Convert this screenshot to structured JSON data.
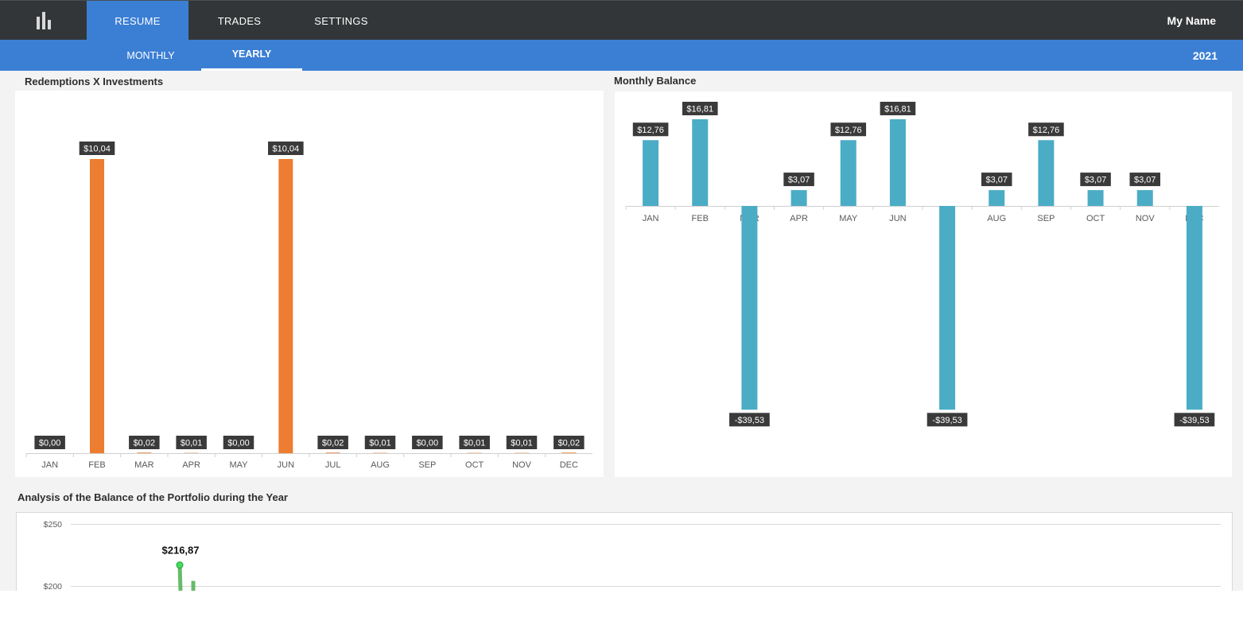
{
  "nav": {
    "logo_icon": "bar-chart-icon",
    "tabs": [
      {
        "label": "RESUME",
        "active": true
      },
      {
        "label": "TRADES",
        "active": false
      },
      {
        "label": "SETTINGS",
        "active": false
      }
    ],
    "user": "My Name"
  },
  "subnav": {
    "tabs": [
      {
        "label": "MONTHLY",
        "active": false
      },
      {
        "label": "YEARLY",
        "active": true
      }
    ],
    "year": "2021"
  },
  "colors": {
    "nav_bg": "#333638",
    "accent": "#3b7fd4",
    "redemption_bar": "#ed7d31",
    "balance_bar": "#4bacc6",
    "portfolio_line": "#4caf50"
  },
  "panels": {
    "redemptions_title": "Redemptions X Investments",
    "balance_title": "Monthly Balance",
    "portfolio_title": "Analysis of the Balance of the Portfolio during the Year"
  },
  "chart_data": [
    {
      "id": "redemptions",
      "type": "bar",
      "title": "Redemptions X Investments",
      "categories": [
        "JAN",
        "FEB",
        "MAR",
        "APR",
        "MAY",
        "JUN",
        "JUL",
        "AUG",
        "SEP",
        "OCT",
        "NOV",
        "DEC"
      ],
      "values": [
        0.0,
        10.04,
        0.02,
        0.01,
        0.0,
        10.04,
        0.02,
        0.01,
        0.0,
        0.01,
        0.01,
        0.02
      ],
      "data_labels": [
        "$0,00",
        "$10,04",
        "$0,02",
        "$0,01",
        "$0,00",
        "$10,04",
        "$0,02",
        "$0,01",
        "$0,00",
        "$0,01",
        "$0,01",
        "$0,02"
      ],
      "ylim": [
        0,
        12
      ],
      "grid": false,
      "color": "#ed7d31"
    },
    {
      "id": "balance",
      "type": "bar",
      "title": "Monthly Balance",
      "categories": [
        "JAN",
        "FEB",
        "MAR",
        "APR",
        "MAY",
        "JUN",
        "JUL",
        "AUG",
        "SEP",
        "OCT",
        "NOV",
        "DEC"
      ],
      "values": [
        12.76,
        16.81,
        -39.53,
        3.07,
        12.76,
        16.81,
        -39.53,
        3.07,
        12.76,
        3.07,
        3.07,
        -39.53
      ],
      "data_labels": [
        "$12,76",
        "$16,81",
        "-$39,53",
        "$3,07",
        "$12,76",
        "$16,81",
        "-$39,53",
        "$3,07",
        "$12,76",
        "$3,07",
        "$3,07",
        "-$39,53"
      ],
      "ylim": [
        -42,
        20
      ],
      "grid": false,
      "color": "#4bacc6"
    },
    {
      "id": "portfolio",
      "type": "line",
      "title": "Analysis of the Balance of the Portfolio during the Year",
      "y_ticks": [
        "$250",
        "$200"
      ],
      "y_tick_values": [
        250,
        200
      ],
      "annotation": "$216,87",
      "peak_value": 216.87,
      "grid": true,
      "color": "#4caf50"
    }
  ]
}
